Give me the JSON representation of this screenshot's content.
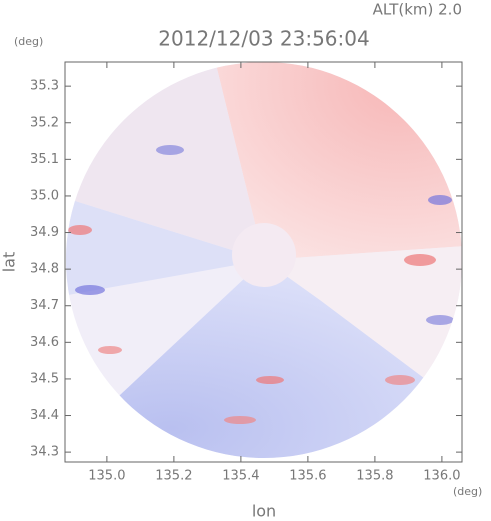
{
  "chart_data": {
    "type": "map",
    "title": "2012/12/03 23:56:04",
    "subtitle": "ALT(km) 2.0",
    "x_label": "lon",
    "y_label": "lat",
    "x_unit": "(deg)",
    "y_unit": "(deg)",
    "xlim": [
      134.875,
      136.06
    ],
    "ylim": [
      34.273,
      35.366
    ],
    "xticks": [
      {
        "value": 135,
        "label": "135.0"
      },
      135.2,
      135.4,
      135.6,
      135.8,
      {
        "value": 136,
        "label": "136.0"
      }
    ],
    "yticks": [
      34.3,
      34.4,
      34.5,
      34.6,
      34.7,
      34.8,
      34.9,
      {
        "value": 35,
        "label": "35.0"
      },
      35.1,
      35.2,
      35.3
    ]
  }
}
